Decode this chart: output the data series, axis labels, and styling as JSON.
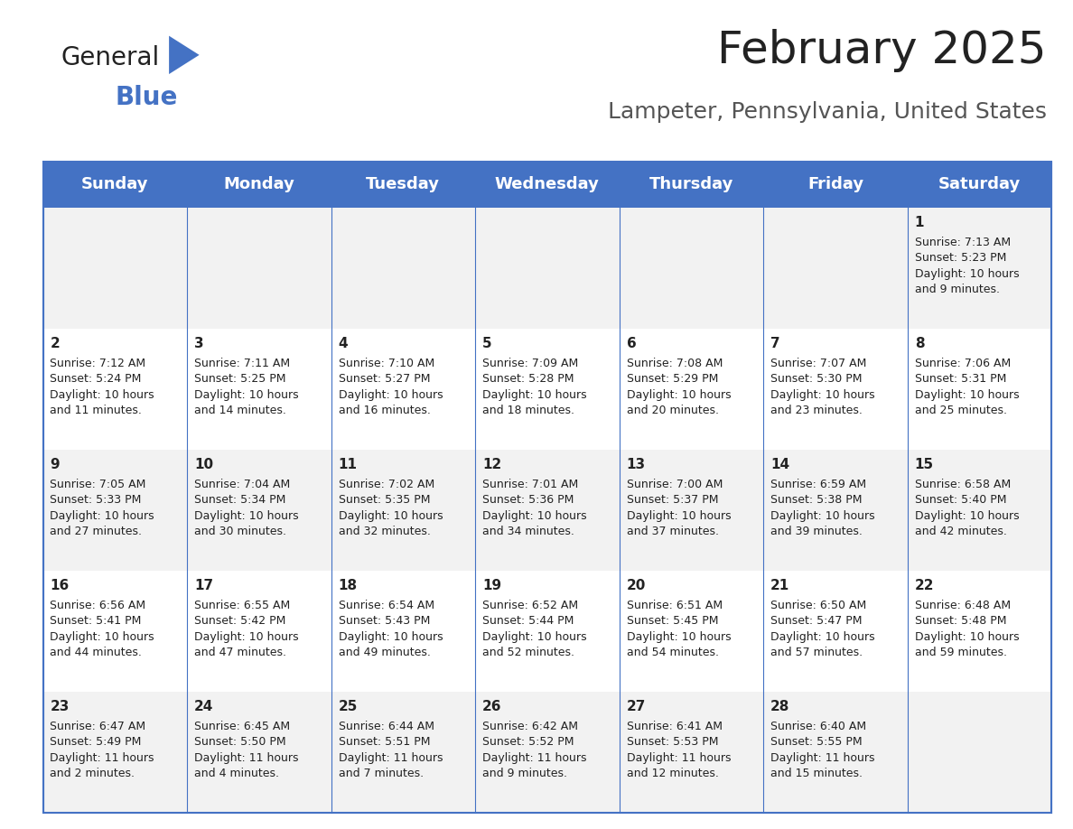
{
  "title": "February 2025",
  "subtitle": "Lampeter, Pennsylvania, United States",
  "header_bg": "#4472C4",
  "header_text_color": "#FFFFFF",
  "row_bg_odd": "#F2F2F2",
  "row_bg_even": "#FFFFFF",
  "border_color": "#4472C4",
  "days_of_week": [
    "Sunday",
    "Monday",
    "Tuesday",
    "Wednesday",
    "Thursday",
    "Friday",
    "Saturday"
  ],
  "cell_data": [
    [
      "",
      "",
      "",
      "",
      "",
      "",
      "1\nSunrise: 7:13 AM\nSunset: 5:23 PM\nDaylight: 10 hours\nand 9 minutes."
    ],
    [
      "2\nSunrise: 7:12 AM\nSunset: 5:24 PM\nDaylight: 10 hours\nand 11 minutes.",
      "3\nSunrise: 7:11 AM\nSunset: 5:25 PM\nDaylight: 10 hours\nand 14 minutes.",
      "4\nSunrise: 7:10 AM\nSunset: 5:27 PM\nDaylight: 10 hours\nand 16 minutes.",
      "5\nSunrise: 7:09 AM\nSunset: 5:28 PM\nDaylight: 10 hours\nand 18 minutes.",
      "6\nSunrise: 7:08 AM\nSunset: 5:29 PM\nDaylight: 10 hours\nand 20 minutes.",
      "7\nSunrise: 7:07 AM\nSunset: 5:30 PM\nDaylight: 10 hours\nand 23 minutes.",
      "8\nSunrise: 7:06 AM\nSunset: 5:31 PM\nDaylight: 10 hours\nand 25 minutes."
    ],
    [
      "9\nSunrise: 7:05 AM\nSunset: 5:33 PM\nDaylight: 10 hours\nand 27 minutes.",
      "10\nSunrise: 7:04 AM\nSunset: 5:34 PM\nDaylight: 10 hours\nand 30 minutes.",
      "11\nSunrise: 7:02 AM\nSunset: 5:35 PM\nDaylight: 10 hours\nand 32 minutes.",
      "12\nSunrise: 7:01 AM\nSunset: 5:36 PM\nDaylight: 10 hours\nand 34 minutes.",
      "13\nSunrise: 7:00 AM\nSunset: 5:37 PM\nDaylight: 10 hours\nand 37 minutes.",
      "14\nSunrise: 6:59 AM\nSunset: 5:38 PM\nDaylight: 10 hours\nand 39 minutes.",
      "15\nSunrise: 6:58 AM\nSunset: 5:40 PM\nDaylight: 10 hours\nand 42 minutes."
    ],
    [
      "16\nSunrise: 6:56 AM\nSunset: 5:41 PM\nDaylight: 10 hours\nand 44 minutes.",
      "17\nSunrise: 6:55 AM\nSunset: 5:42 PM\nDaylight: 10 hours\nand 47 minutes.",
      "18\nSunrise: 6:54 AM\nSunset: 5:43 PM\nDaylight: 10 hours\nand 49 minutes.",
      "19\nSunrise: 6:52 AM\nSunset: 5:44 PM\nDaylight: 10 hours\nand 52 minutes.",
      "20\nSunrise: 6:51 AM\nSunset: 5:45 PM\nDaylight: 10 hours\nand 54 minutes.",
      "21\nSunrise: 6:50 AM\nSunset: 5:47 PM\nDaylight: 10 hours\nand 57 minutes.",
      "22\nSunrise: 6:48 AM\nSunset: 5:48 PM\nDaylight: 10 hours\nand 59 minutes."
    ],
    [
      "23\nSunrise: 6:47 AM\nSunset: 5:49 PM\nDaylight: 11 hours\nand 2 minutes.",
      "24\nSunrise: 6:45 AM\nSunset: 5:50 PM\nDaylight: 11 hours\nand 4 minutes.",
      "25\nSunrise: 6:44 AM\nSunset: 5:51 PM\nDaylight: 11 hours\nand 7 minutes.",
      "26\nSunrise: 6:42 AM\nSunset: 5:52 PM\nDaylight: 11 hours\nand 9 minutes.",
      "27\nSunrise: 6:41 AM\nSunset: 5:53 PM\nDaylight: 11 hours\nand 12 minutes.",
      "28\nSunrise: 6:40 AM\nSunset: 5:55 PM\nDaylight: 11 hours\nand 15 minutes.",
      ""
    ]
  ],
  "logo_text_general": "General",
  "logo_text_blue": "Blue",
  "logo_triangle_color": "#4472C4",
  "title_fontsize": 36,
  "subtitle_fontsize": 18,
  "header_fontsize": 13,
  "cell_day_fontsize": 11,
  "cell_info_fontsize": 9
}
